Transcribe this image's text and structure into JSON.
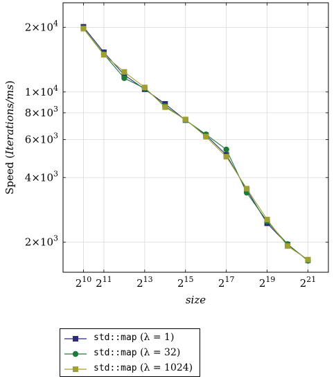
{
  "chart_data": {
    "type": "line",
    "xscale": "log2",
    "yscale": "log",
    "xlabel": "size",
    "ylabel_prefix": "Speed (",
    "ylabel_italic": "Iterations/ms",
    "ylabel_suffix": ")",
    "xlim": [
      512,
      4194304
    ],
    "ylim": [
      1450,
      26000
    ],
    "x_ticks": [
      {
        "value": 1024,
        "base": "2",
        "exp": "10"
      },
      {
        "value": 2048,
        "base": "2",
        "exp": "11"
      },
      {
        "value": 8192,
        "base": "2",
        "exp": "13"
      },
      {
        "value": 32768,
        "base": "2",
        "exp": "15"
      },
      {
        "value": 131072,
        "base": "2",
        "exp": "17"
      },
      {
        "value": 524288,
        "base": "2",
        "exp": "19"
      },
      {
        "value": 2097152,
        "base": "2",
        "exp": "21"
      }
    ],
    "y_ticks": [
      {
        "value": 2000,
        "mant": "2×10",
        "exp": "3"
      },
      {
        "value": 4000,
        "mant": "4×10",
        "exp": "3"
      },
      {
        "value": 6000,
        "mant": "6×10",
        "exp": "3"
      },
      {
        "value": 8000,
        "mant": "8×10",
        "exp": "3"
      },
      {
        "value": 10000,
        "mant": "1×10",
        "exp": "4"
      },
      {
        "value": 20000,
        "mant": "2×10",
        "exp": "4"
      }
    ],
    "x": [
      1024,
      2048,
      4096,
      8192,
      16384,
      32768,
      65536,
      131072,
      262144,
      524288,
      1048576,
      2097152
    ],
    "series": [
      {
        "code": "std::map",
        "lambda": "(λ = 1)",
        "color": "#2e2a7a",
        "marker": "square",
        "values": [
          20100,
          15300,
          12000,
          10300,
          8800,
          7400,
          6300,
          5100,
          3500,
          2450,
          1950,
          1650
        ]
      },
      {
        "code": "std::map",
        "lambda": "(λ = 32)",
        "color": "#1e7a3a",
        "marker": "circle",
        "values": [
          19800,
          15000,
          11600,
          10400,
          8600,
          7400,
          6350,
          5400,
          3400,
          2500,
          1960,
          1640
        ]
      },
      {
        "code": "std::map",
        "lambda": "(λ = 1024)",
        "color": "#9fa033",
        "marker": "square",
        "values": [
          19700,
          14900,
          12400,
          10500,
          8500,
          7450,
          6200,
          5000,
          3550,
          2550,
          1920,
          1660
        ]
      }
    ],
    "grid": true,
    "legend_position": "bottom-outside"
  }
}
